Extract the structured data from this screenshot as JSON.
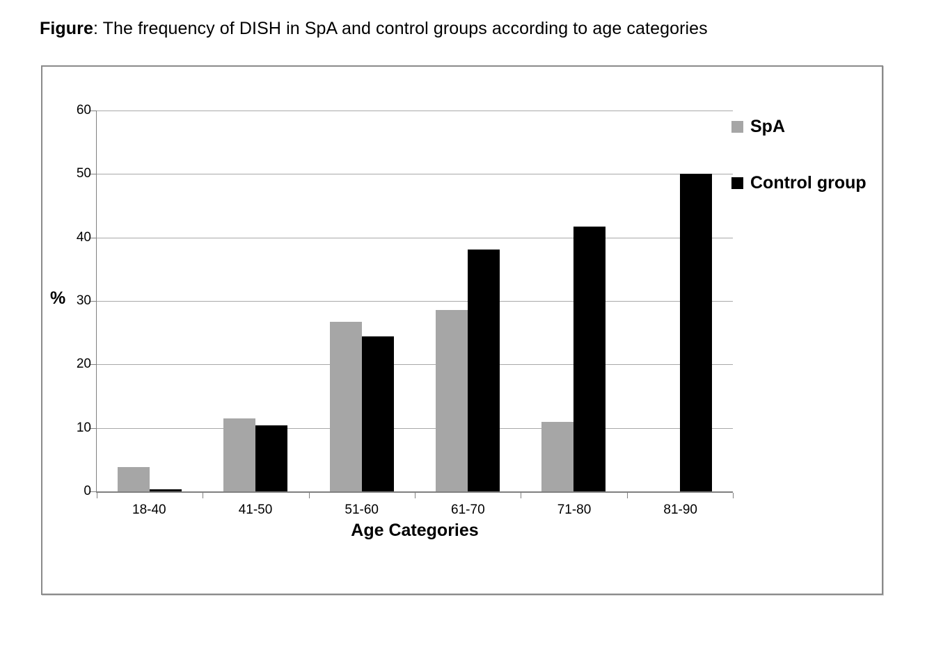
{
  "figure": {
    "title_bold": "Figure",
    "title_rest": ": The frequency of DISH in SpA and control groups according to age categories"
  },
  "chart_data": {
    "type": "bar",
    "title": "Figure: The frequency of DISH in SpA and control groups according to age categories",
    "categories": [
      "18-40",
      "41-50",
      "51-60",
      "61-70",
      "71-80",
      "81-90"
    ],
    "series": [
      {
        "name": "SpA",
        "color": "#a6a6a6",
        "values": [
          3.8,
          11.5,
          26.7,
          28.6,
          11.0,
          0
        ]
      },
      {
        "name": "Control group",
        "color": "#000000",
        "values": [
          0.3,
          10.4,
          24.4,
          38.1,
          41.7,
          50.0
        ]
      }
    ],
    "xlabel": "Age Categories",
    "ylabel": "%",
    "ylim": [
      0,
      60
    ],
    "yticks": [
      0,
      10,
      20,
      30,
      40,
      50,
      60
    ],
    "grid": true,
    "legend_position": "right-top"
  }
}
